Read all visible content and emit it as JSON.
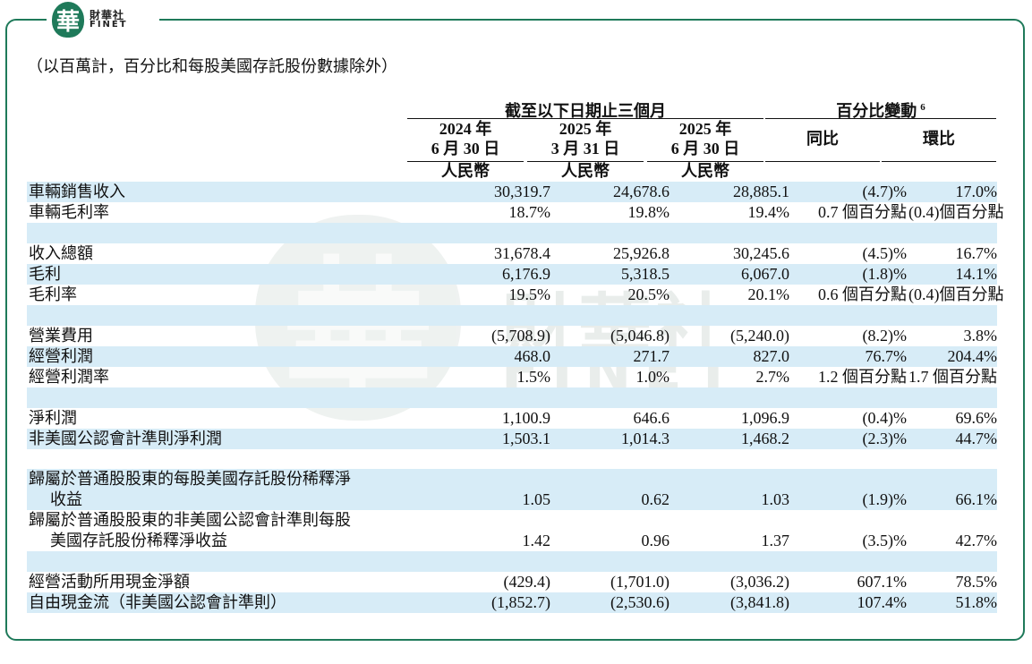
{
  "logo": {
    "mark": "華",
    "cn": "財華社",
    "en": "FINET"
  },
  "watermark": {
    "mark": "華",
    "cn": "財華社",
    "en": "FINET"
  },
  "note": "（以百萬計，百分比和每股美國存託股份數據除外）",
  "header": {
    "group_period": "截至以下日期止三個月",
    "group_change": "百分比變動",
    "group_change_sup": "6",
    "col1_year": "2024 年",
    "col1_date": "6 月 30 日",
    "col2_year": "2025 年",
    "col2_date": "3 月 31 日",
    "col3_year": "2025 年",
    "col3_date": "6 月 30 日",
    "col4": "同比",
    "col5": "環比",
    "currency": "人民幣"
  },
  "rows": [
    {
      "label": "車輛銷售收入",
      "v1": "30,319.7",
      "v2": "24,678.6",
      "v3": "28,885.1",
      "v4": "(4.7)%",
      "v5": "17.0%"
    },
    {
      "label": "車輛毛利率",
      "v1": "18.7%",
      "v2": "19.8%",
      "v3": "19.4%",
      "v4": "0.7 個百分點",
      "v5": "(0.4)個百分點"
    },
    {
      "label": "收入總額",
      "v1": "31,678.4",
      "v2": "25,926.8",
      "v3": "30,245.6",
      "v4": "(4.5)%",
      "v5": "16.7%"
    },
    {
      "label": "毛利",
      "v1": "6,176.9",
      "v2": "5,318.5",
      "v3": "6,067.0",
      "v4": "(1.8)%",
      "v5": "14.1%"
    },
    {
      "label": "毛利率",
      "v1": "19.5%",
      "v2": "20.5%",
      "v3": "20.1%",
      "v4": "0.6 個百分點",
      "v5": "(0.4)個百分點"
    },
    {
      "label": "營業費用",
      "v1": "(5,708.9)",
      "v2": "(5,046.8)",
      "v3": "(5,240.0)",
      "v4": "(8.2)%",
      "v5": "3.8%"
    },
    {
      "label": "經營利潤",
      "v1": "468.0",
      "v2": "271.7",
      "v3": "827.0",
      "v4": "76.7%",
      "v5": "204.4%"
    },
    {
      "label": "經營利潤率",
      "v1": "1.5%",
      "v2": "1.0%",
      "v3": "2.7%",
      "v4": "1.2 個百分點",
      "v5": "1.7 個百分點"
    },
    {
      "label": "淨利潤",
      "v1": "1,100.9",
      "v2": "646.6",
      "v3": "1,096.9",
      "v4": "(0.4)%",
      "v5": "69.6%"
    },
    {
      "label": "非美國公認會計準則淨利潤",
      "v1": "1,503.1",
      "v2": "1,014.3",
      "v3": "1,468.2",
      "v4": "(2.3)%",
      "v5": "44.7%"
    },
    {
      "label": "歸屬於普通股股東的每股美國存託股份稀釋淨",
      "label2": "收益",
      "v1": "1.05",
      "v2": "0.62",
      "v3": "1.03",
      "v4": "(1.9)%",
      "v5": "66.1%"
    },
    {
      "label": "歸屬於普通股股東的非美國公認會計準則每股",
      "label2": "美國存託股份稀釋淨收益",
      "v1": "1.42",
      "v2": "0.96",
      "v3": "1.37",
      "v4": "(3.5)%",
      "v5": "42.7%"
    },
    {
      "label": "經營活動所用現金淨額",
      "v1": "(429.4)",
      "v2": "(1,701.0)",
      "v3": "(3,036.2)",
      "v4": "607.1%",
      "v5": "78.5%"
    },
    {
      "label": "自由現金流（非美國公認會計準則）",
      "v1": "(1,852.7)",
      "v2": "(2,530.6)",
      "v3": "(3,841.8)",
      "v4": "107.4%",
      "v5": "51.8%"
    }
  ],
  "colors": {
    "frame": "#1f7a5a",
    "row_shade": "#d7ecf7"
  }
}
